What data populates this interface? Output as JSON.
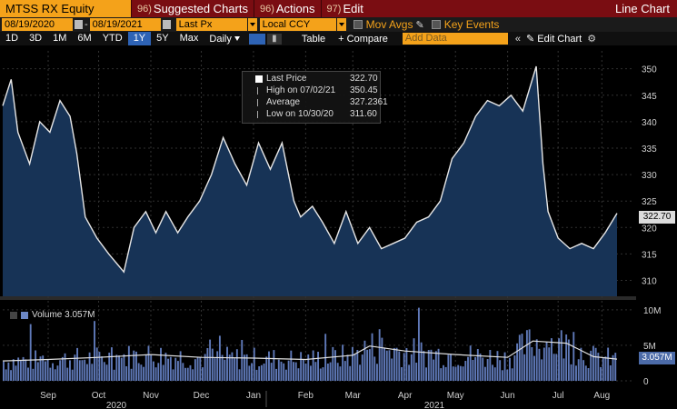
{
  "toolbar": {
    "ticker": "MTSS RX Equity",
    "buttons": [
      {
        "num": "96)",
        "label": "Suggested Charts"
      },
      {
        "num": "96)",
        "label": "Actions"
      },
      {
        "num": "97)",
        "label": "Edit"
      }
    ],
    "title": "Line Chart"
  },
  "controls": {
    "start_date": "08/19/2020",
    "end_date": "08/19/2021",
    "field": "Last Px",
    "currency": "Local CCY",
    "mov_avgs": "Mov Avgs",
    "key_events": "Key Events"
  },
  "timeframes": [
    "1D",
    "3D",
    "1M",
    "6M",
    "YTD",
    "1Y",
    "5Y",
    "Max"
  ],
  "active_timeframe": "1Y",
  "periodicity": "Daily",
  "table_label": "Table",
  "compare_label": "+ Compare",
  "add_data_placeholder": "Add Data",
  "edit_chart_label": "Edit Chart",
  "tooltip": {
    "rows": [
      {
        "label": "Last Price",
        "value": "322.70"
      },
      {
        "label": "High on 07/02/21",
        "value": "350.45"
      },
      {
        "label": "Average",
        "value": "327.2361"
      },
      {
        "label": "Low on 10/30/20",
        "value": "311.60"
      }
    ]
  },
  "last_price_tag": "322.70",
  "volume_legend": "Volume 3.057M",
  "volume_tag": "3.057M",
  "chart_data": {
    "type": "area",
    "price_axis": {
      "ylim": [
        307,
        352
      ],
      "ticks": [
        310,
        315,
        320,
        325,
        330,
        335,
        340,
        345,
        350
      ]
    },
    "volume_axis": {
      "ylim": [
        0,
        11000000
      ],
      "ticks": [
        "0",
        "5M",
        "10M"
      ]
    },
    "x_month_labels": [
      "Sep",
      "Oct",
      "Nov",
      "Dec",
      "Jan",
      "Feb",
      "Mar",
      "Apr",
      "May",
      "Jun",
      "Jul",
      "Aug"
    ],
    "year_labels": [
      "2020",
      "2021"
    ],
    "price": [
      [
        "2020-08-19",
        343
      ],
      [
        "2020-08-24",
        348
      ],
      [
        "2020-08-28",
        338
      ],
      [
        "2020-09-04",
        332
      ],
      [
        "2020-09-10",
        340
      ],
      [
        "2020-09-16",
        338
      ],
      [
        "2020-09-22",
        344
      ],
      [
        "2020-09-28",
        341
      ],
      [
        "2020-10-02",
        334
      ],
      [
        "2020-10-07",
        322
      ],
      [
        "2020-10-14",
        318
      ],
      [
        "2020-10-21",
        315
      ],
      [
        "2020-10-30",
        311.6
      ],
      [
        "2020-11-05",
        320
      ],
      [
        "2020-11-12",
        323
      ],
      [
        "2020-11-18",
        319
      ],
      [
        "2020-11-24",
        323
      ],
      [
        "2020-12-01",
        319
      ],
      [
        "2020-12-07",
        322
      ],
      [
        "2020-12-14",
        325
      ],
      [
        "2020-12-21",
        330
      ],
      [
        "2020-12-28",
        337
      ],
      [
        "2021-01-04",
        332
      ],
      [
        "2021-01-11",
        328
      ],
      [
        "2021-01-18",
        336
      ],
      [
        "2021-01-25",
        331
      ],
      [
        "2021-02-01",
        336
      ],
      [
        "2021-02-08",
        325
      ],
      [
        "2021-02-12",
        322
      ],
      [
        "2021-02-19",
        324
      ],
      [
        "2021-02-25",
        321
      ],
      [
        "2021-03-04",
        317
      ],
      [
        "2021-03-11",
        323
      ],
      [
        "2021-03-18",
        317
      ],
      [
        "2021-03-25",
        320
      ],
      [
        "2021-04-01",
        316
      ],
      [
        "2021-04-08",
        317
      ],
      [
        "2021-04-15",
        318
      ],
      [
        "2021-04-22",
        321
      ],
      [
        "2021-04-29",
        322
      ],
      [
        "2021-05-06",
        325
      ],
      [
        "2021-05-13",
        333
      ],
      [
        "2021-05-20",
        336
      ],
      [
        "2021-05-27",
        341
      ],
      [
        "2021-06-03",
        344
      ],
      [
        "2021-06-10",
        343
      ],
      [
        "2021-06-17",
        345
      ],
      [
        "2021-06-24",
        342
      ],
      [
        "2021-07-02",
        350.45
      ],
      [
        "2021-07-06",
        332
      ],
      [
        "2021-07-09",
        323
      ],
      [
        "2021-07-15",
        318
      ],
      [
        "2021-07-22",
        316
      ],
      [
        "2021-07-29",
        317
      ],
      [
        "2021-08-05",
        316
      ],
      [
        "2021-08-12",
        319
      ],
      [
        "2021-08-19",
        322.7
      ]
    ],
    "volume_avg": [
      [
        "2020-08-19",
        2800000
      ],
      [
        "2020-09-15",
        3000000
      ],
      [
        "2020-10-15",
        3300000
      ],
      [
        "2020-11-15",
        3700000
      ],
      [
        "2020-12-15",
        3300000
      ],
      [
        "2021-01-15",
        3200000
      ],
      [
        "2021-02-15",
        3000000
      ],
      [
        "2021-03-15",
        3600000
      ],
      [
        "2021-03-25",
        4900000
      ],
      [
        "2021-04-15",
        4200000
      ],
      [
        "2021-05-15",
        3700000
      ],
      [
        "2021-06-15",
        3300000
      ],
      [
        "2021-06-30",
        5600000
      ],
      [
        "2021-07-20",
        5300000
      ],
      [
        "2021-08-05",
        3400000
      ],
      [
        "2021-08-19",
        3057000
      ]
    ],
    "volume_level": 3057000
  },
  "colors": {
    "accent_orange": "#f4a21a",
    "header_red": "#7a0d12",
    "area_fill": "#173356",
    "line": "#e6e6e6",
    "volume_bar": "#5f79b8"
  }
}
